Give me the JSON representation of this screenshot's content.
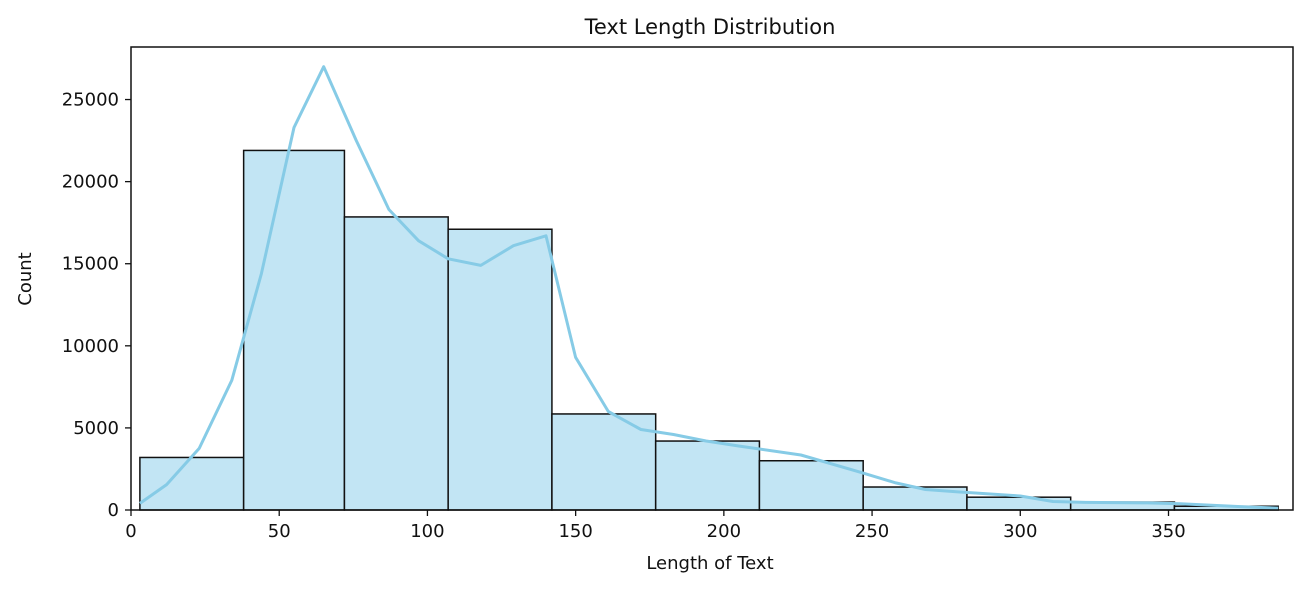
{
  "chart_data": {
    "type": "bar",
    "title": "Text Length Distribution",
    "xlabel": "Length of Text",
    "ylabel": "Count",
    "xlim": [
      0,
      392
    ],
    "ylim": [
      0,
      28200
    ],
    "xticks": [
      0,
      50,
      100,
      150,
      200,
      250,
      300,
      350
    ],
    "yticks": [
      0,
      5000,
      10000,
      15000,
      20000,
      25000
    ],
    "bins": [
      {
        "start": 3,
        "end": 38,
        "count": 3200
      },
      {
        "start": 38,
        "end": 72,
        "count": 21900
      },
      {
        "start": 72,
        "end": 107,
        "count": 17850
      },
      {
        "start": 107,
        "end": 142,
        "count": 17100
      },
      {
        "start": 142,
        "end": 177,
        "count": 5850
      },
      {
        "start": 177,
        "end": 212,
        "count": 4200
      },
      {
        "start": 212,
        "end": 247,
        "count": 3000
      },
      {
        "start": 247,
        "end": 282,
        "count": 1400
      },
      {
        "start": 282,
        "end": 317,
        "count": 780
      },
      {
        "start": 317,
        "end": 352,
        "count": 480
      },
      {
        "start": 352,
        "end": 387,
        "count": 230
      }
    ],
    "kde": {
      "x": [
        3,
        12,
        23,
        34,
        44,
        55,
        65,
        76,
        87,
        97,
        107,
        118,
        129,
        140,
        150,
        161,
        172,
        183,
        194,
        205,
        226,
        246,
        258,
        268,
        279,
        300,
        311,
        322,
        343,
        354,
        376,
        387
      ],
      "y": [
        400,
        1550,
        3750,
        7900,
        14400,
        23300,
        27000,
        22500,
        18300,
        16400,
        15300,
        14900,
        16100,
        16700,
        9300,
        6000,
        4900,
        4600,
        4200,
        3900,
        3350,
        2300,
        1650,
        1250,
        1100,
        850,
        520,
        460,
        430,
        380,
        190,
        110
      ]
    },
    "grid": false,
    "legend": "none",
    "colors": {
      "bar_fill": "#c2e5f4",
      "bar_edge": "#111111",
      "kde_line": "#86cbe6"
    }
  }
}
